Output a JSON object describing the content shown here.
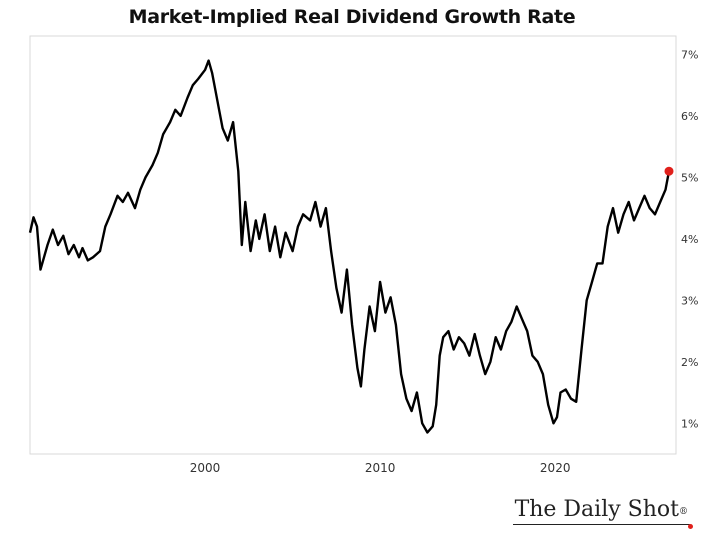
{
  "chart_data": {
    "type": "line",
    "title": "Market-Implied Real Dividend Growth Rate",
    "xlabel": "",
    "ylabel": "",
    "xlim": [
      1990.0,
      2026.9
    ],
    "ylim": [
      0.5,
      7.3
    ],
    "x_ticks": [
      2000,
      2010,
      2020
    ],
    "x_tick_labels": [
      "2000",
      "2010",
      "2020"
    ],
    "y_ticks": [
      1,
      2,
      3,
      4,
      5,
      6,
      7
    ],
    "y_tick_labels": [
      "1%",
      "2%",
      "3%",
      "4%",
      "5%",
      "6%",
      "7%"
    ],
    "y_axis_side": "right",
    "grid": false,
    "line_color": "#000000",
    "last_point_color": "#e0201b",
    "series": [
      {
        "x": [
          1990.0,
          1990.2,
          1990.4,
          1990.6,
          1990.8,
          1991.0,
          1991.3,
          1991.6,
          1991.9,
          1992.2,
          1992.5,
          1992.8,
          1993.0,
          1993.3,
          1993.6,
          1994.0,
          1994.3,
          1994.6,
          1995.0,
          1995.3,
          1995.6,
          1996.0,
          1996.3,
          1996.6,
          1997.0,
          1997.3,
          1997.6,
          1998.0,
          1998.3,
          1998.6,
          1999.0,
          1999.3,
          1999.6,
          2000.0,
          2000.2,
          2000.4,
          2000.6,
          2000.8,
          2001.0,
          2001.3,
          2001.6,
          2001.9,
          2002.1,
          2002.3,
          2002.6,
          2002.9,
          2003.1,
          2003.4,
          2003.7,
          2004.0,
          2004.3,
          2004.6,
          2005.0,
          2005.3,
          2005.6,
          2006.0,
          2006.3,
          2006.6,
          2006.9,
          2007.2,
          2007.5,
          2007.8,
          2008.1,
          2008.4,
          2008.7,
          2008.9,
          2009.1,
          2009.4,
          2009.7,
          2010.0,
          2010.3,
          2010.6,
          2010.9,
          2011.2,
          2011.5,
          2011.8,
          2012.1,
          2012.4,
          2012.7,
          2013.0,
          2013.2,
          2013.4,
          2013.6,
          2013.9,
          2014.2,
          2014.5,
          2014.8,
          2015.1,
          2015.4,
          2015.7,
          2016.0,
          2016.3,
          2016.6,
          2016.9,
          2017.2,
          2017.5,
          2017.8,
          2018.1,
          2018.4,
          2018.7,
          2019.0,
          2019.3,
          2019.6,
          2019.9,
          2020.1,
          2020.3,
          2020.6,
          2020.9,
          2021.2,
          2021.5,
          2021.8,
          2022.1,
          2022.4,
          2022.7,
          2023.0,
          2023.3,
          2023.6,
          2023.9,
          2024.2,
          2024.5,
          2024.8,
          2025.1,
          2025.4,
          2025.7,
          2026.0,
          2026.3,
          2026.5
        ],
        "y": [
          4.1,
          4.35,
          4.2,
          3.5,
          3.7,
          3.9,
          4.15,
          3.9,
          4.05,
          3.75,
          3.9,
          3.7,
          3.85,
          3.65,
          3.7,
          3.8,
          4.2,
          4.4,
          4.7,
          4.6,
          4.75,
          4.5,
          4.8,
          5.0,
          5.2,
          5.4,
          5.7,
          5.9,
          6.1,
          6.0,
          6.3,
          6.5,
          6.6,
          6.75,
          6.9,
          6.7,
          6.4,
          6.1,
          5.8,
          5.6,
          5.9,
          5.1,
          3.9,
          4.6,
          3.8,
          4.3,
          4.0,
          4.4,
          3.8,
          4.2,
          3.7,
          4.1,
          3.8,
          4.2,
          4.4,
          4.3,
          4.6,
          4.2,
          4.5,
          3.8,
          3.2,
          2.8,
          3.5,
          2.6,
          1.9,
          1.6,
          2.2,
          2.9,
          2.5,
          3.3,
          2.8,
          3.05,
          2.6,
          1.8,
          1.4,
          1.2,
          1.5,
          1.0,
          0.85,
          0.95,
          1.3,
          2.1,
          2.4,
          2.5,
          2.2,
          2.4,
          2.3,
          2.1,
          2.45,
          2.1,
          1.8,
          2.0,
          2.4,
          2.2,
          2.5,
          2.65,
          2.9,
          2.7,
          2.5,
          2.1,
          2.0,
          1.8,
          1.3,
          1.0,
          1.1,
          1.5,
          1.55,
          1.4,
          1.35,
          2.2,
          3.0,
          3.3,
          3.6,
          3.6,
          4.2,
          4.5,
          4.1,
          4.4,
          4.6,
          4.3,
          4.5,
          4.7,
          4.5,
          4.4,
          4.6,
          4.8,
          5.1
        ]
      }
    ]
  },
  "branding": {
    "text": "The Daily Shot",
    "reg_mark": "®"
  }
}
